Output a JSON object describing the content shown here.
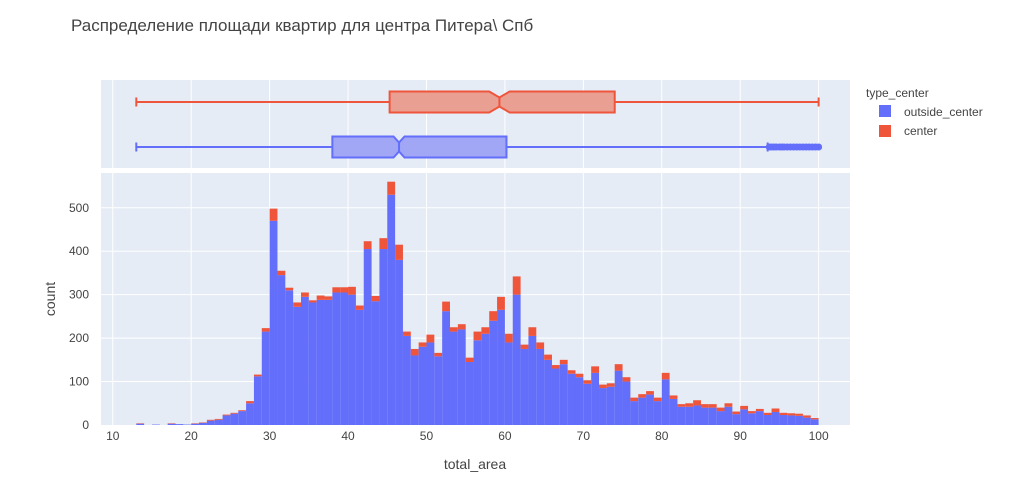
{
  "chart_data": {
    "type": "histogram",
    "title": "Распределение площади квартир для центра Питера\\ Спб",
    "xlabel": "total_area",
    "ylabel": "count",
    "barmode": "stack",
    "xlim": [
      8.5,
      104
    ],
    "ylim": [
      0,
      580
    ],
    "x_ticks": [
      10,
      20,
      30,
      40,
      50,
      60,
      70,
      80,
      90,
      100
    ],
    "y_ticks": [
      0,
      100,
      200,
      300,
      400,
      500
    ],
    "grid": true,
    "legend": {
      "title": "type_center",
      "placement": "top-right",
      "entries": [
        {
          "name": "outside_center",
          "color": "#636efa"
        },
        {
          "name": "center",
          "color": "#ef553b"
        }
      ]
    },
    "bin_width": 1,
    "bin_starts": [
      13,
      14,
      15,
      16,
      17,
      18,
      19,
      20,
      21,
      22,
      23,
      24,
      25,
      26,
      27,
      28,
      29,
      30,
      31,
      32,
      33,
      34,
      35,
      36,
      37,
      38,
      39,
      40,
      41,
      42,
      43,
      44,
      45,
      46,
      47,
      48,
      49,
      50,
      51,
      52,
      53,
      54,
      55,
      56,
      57,
      58,
      59,
      60,
      61,
      62,
      63,
      64,
      65,
      66,
      67,
      68,
      69,
      70,
      71,
      72,
      73,
      74,
      75,
      76,
      77,
      78,
      79,
      80,
      81,
      82,
      83,
      84,
      85,
      86,
      87,
      88,
      89,
      90,
      91,
      92,
      93,
      94,
      95,
      96,
      97,
      98,
      99
    ],
    "series": [
      {
        "name": "outside_center",
        "color": "#636efa",
        "values": [
          3,
          0,
          1,
          0,
          3,
          2,
          1,
          3,
          5,
          10,
          12,
          22,
          26,
          32,
          50,
          112,
          215,
          470,
          345,
          310,
          272,
          295,
          282,
          288,
          288,
          305,
          305,
          300,
          265,
          405,
          285,
          405,
          530,
          380,
          205,
          160,
          180,
          190,
          158,
          262,
          215,
          220,
          145,
          195,
          210,
          240,
          265,
          190,
          300,
          175,
          205,
          175,
          150,
          130,
          140,
          118,
          110,
          95,
          120,
          85,
          88,
          125,
          100,
          55,
          63,
          70,
          55,
          105,
          60,
          42,
          42,
          45,
          40,
          40,
          32,
          42,
          25,
          36,
          27,
          32,
          23,
          30,
          23,
          22,
          21,
          17,
          13
        ],
        "legend_marker": "square"
      },
      {
        "name": "center",
        "color": "#ef553b",
        "values": [
          1,
          0,
          0,
          0,
          1,
          0,
          0,
          1,
          1,
          2,
          2,
          2,
          2,
          2,
          5,
          4,
          8,
          28,
          10,
          6,
          10,
          10,
          5,
          10,
          8,
          12,
          12,
          18,
          10,
          18,
          12,
          25,
          30,
          35,
          10,
          15,
          10,
          18,
          8,
          22,
          10,
          12,
          10,
          20,
          15,
          22,
          30,
          20,
          42,
          10,
          20,
          15,
          12,
          8,
          10,
          8,
          8,
          8,
          15,
          8,
          8,
          15,
          10,
          8,
          8,
          8,
          8,
          15,
          8,
          6,
          8,
          12,
          8,
          8,
          8,
          8,
          6,
          8,
          5,
          5,
          5,
          8,
          5,
          5,
          5,
          5,
          3
        ]
      }
    ],
    "box_plots": [
      {
        "name": "center",
        "color": "#ef553b",
        "fill": "#ea9f93",
        "min": 13,
        "q1": 45.3,
        "median": 59.3,
        "q3": 74,
        "max": 100,
        "notch_low": 58,
        "notch_high": 60.6
      },
      {
        "name": "outside_center",
        "color": "#636efa",
        "fill": "#a1a6f5",
        "min": 13,
        "q1": 38,
        "median": 46.5,
        "q3": 60.2,
        "max": 93.5,
        "notch_low": 45.8,
        "notch_high": 47.2,
        "outliers": [
          93.7,
          94,
          94.3,
          94.6,
          95,
          95.3,
          95.6,
          96,
          96.4,
          96.8,
          97.2,
          97.6,
          98,
          98.4,
          98.8,
          99.2,
          99.6,
          100
        ]
      }
    ]
  }
}
